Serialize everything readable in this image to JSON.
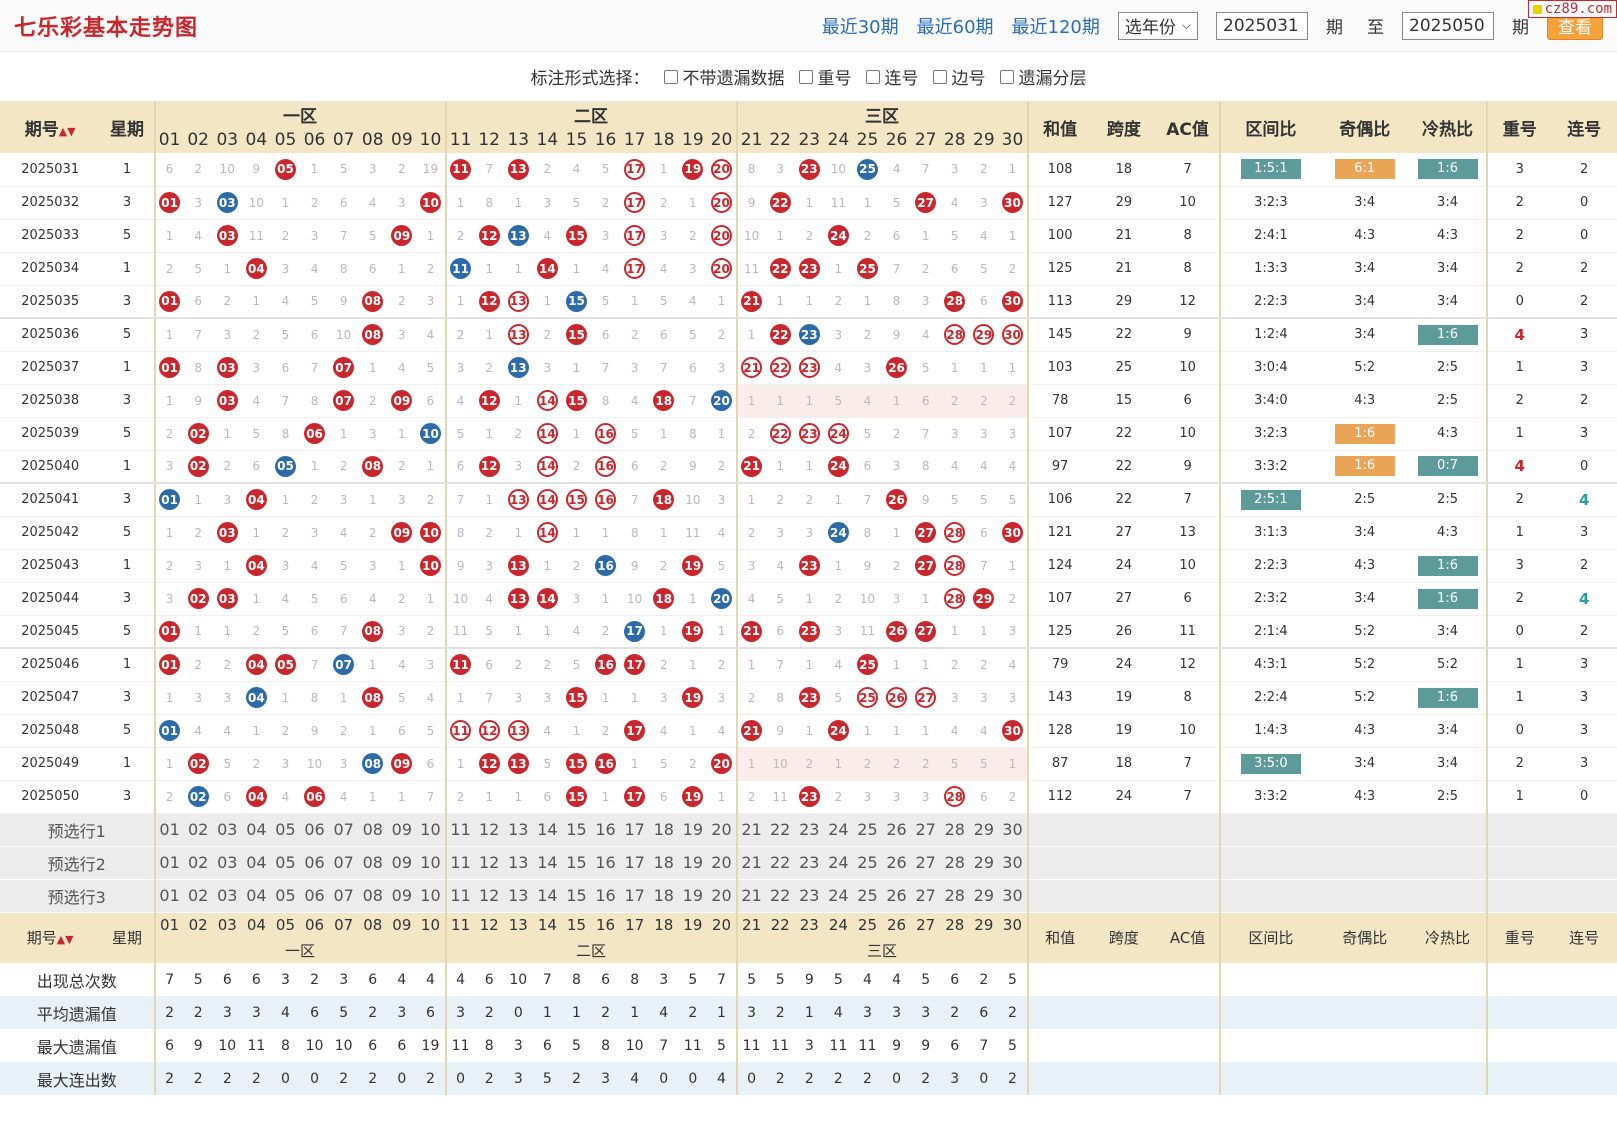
{
  "header": {
    "title": "七乐彩基本走势图",
    "links": [
      "最近30期",
      "最近60期",
      "最近120期"
    ],
    "year_select": "选年份",
    "from_issue": "2025031",
    "issue_unit": "期",
    "to_label": "至",
    "to_issue": "2025050",
    "query_button": "查看",
    "brand": "cz89.com"
  },
  "options": {
    "label": "标注形式选择：",
    "items": [
      "不带遗漏数据",
      "重号",
      "连号",
      "边号",
      "遗漏分层"
    ]
  },
  "table": {
    "col_period": "期号",
    "col_weekday": "星期",
    "zones": [
      "一区",
      "二区",
      "三区"
    ],
    "numbers": [
      "01",
      "02",
      "03",
      "04",
      "05",
      "06",
      "07",
      "08",
      "09",
      "10",
      "11",
      "12",
      "13",
      "14",
      "15",
      "16",
      "17",
      "18",
      "19",
      "20",
      "21",
      "22",
      "23",
      "24",
      "25",
      "26",
      "27",
      "28",
      "29",
      "30"
    ],
    "stat_cols": [
      "和值",
      "跨度",
      "AC值",
      "区间比",
      "奇偶比",
      "冷热比",
      "重号",
      "连号"
    ]
  },
  "colors": {
    "red": "#c8272d",
    "blue": "#2d6aa8",
    "teal": "#5d9b9b",
    "orange": "#e9a456"
  },
  "rows": [
    {
      "p": "2025031",
      "w": "1",
      "c": [
        6,
        2,
        10,
        9,
        "R05",
        1,
        5,
        3,
        2,
        19,
        "R11",
        7,
        "R13",
        2,
        4,
        5,
        "O17",
        1,
        "R19",
        "O20",
        8,
        3,
        "R23",
        10,
        "B25",
        4,
        7,
        3,
        2,
        1
      ],
      "s": [
        "108",
        "18",
        "7",
        "1:5:1",
        "6:1",
        "1:6",
        "3",
        "2"
      ],
      "t": {
        "3": "teal",
        "4": "orange",
        "5": "teal"
      }
    },
    {
      "p": "2025032",
      "w": "3",
      "c": [
        "R01",
        3,
        "B03",
        10,
        1,
        2,
        6,
        4,
        3,
        "R10",
        1,
        8,
        1,
        3,
        5,
        2,
        "O17",
        2,
        1,
        "O20",
        9,
        "R22",
        1,
        11,
        1,
        5,
        "R27",
        4,
        3,
        "R30"
      ],
      "s": [
        "127",
        "29",
        "10",
        "3:2:3",
        "3:4",
        "3:4",
        "2",
        "0"
      ]
    },
    {
      "p": "2025033",
      "w": "5",
      "c": [
        1,
        4,
        "R03",
        11,
        2,
        3,
        7,
        5,
        "R09",
        1,
        2,
        "R12",
        "B13",
        4,
        "R15",
        3,
        "O17",
        3,
        2,
        "O20",
        10,
        1,
        2,
        "R24",
        2,
        6,
        1,
        5,
        4,
        1
      ],
      "s": [
        "100",
        "21",
        "8",
        "2:4:1",
        "4:3",
        "4:3",
        "2",
        "0"
      ]
    },
    {
      "p": "2025034",
      "w": "1",
      "c": [
        2,
        5,
        1,
        "R04",
        3,
        4,
        8,
        6,
        1,
        2,
        "B11",
        1,
        1,
        "R14",
        1,
        4,
        "O17",
        4,
        3,
        "O20",
        11,
        "R22",
        "R23",
        1,
        "R25",
        7,
        2,
        6,
        5,
        2
      ],
      "s": [
        "125",
        "21",
        "8",
        "1:3:3",
        "3:4",
        "3:4",
        "2",
        "2"
      ]
    },
    {
      "p": "2025035",
      "w": "3",
      "c": [
        "R01",
        6,
        2,
        1,
        4,
        5,
        9,
        "R08",
        2,
        3,
        1,
        "R12",
        "O13",
        1,
        "B15",
        5,
        1,
        5,
        4,
        1,
        "R21",
        1,
        1,
        2,
        1,
        8,
        3,
        "R28",
        6,
        "R30"
      ],
      "s": [
        "113",
        "29",
        "12",
        "2:2:3",
        "3:4",
        "3:4",
        "0",
        "2"
      ],
      "g": 1
    },
    {
      "p": "2025036",
      "w": "5",
      "c": [
        1,
        7,
        3,
        2,
        5,
        6,
        10,
        "R08",
        3,
        4,
        2,
        1,
        "O13",
        2,
        "R15",
        6,
        2,
        6,
        5,
        2,
        1,
        "R22",
        "B23",
        3,
        2,
        9,
        4,
        "O28",
        "O29",
        "O30"
      ],
      "s": [
        "145",
        "22",
        "9",
        "1:2:4",
        "3:4",
        "1:6",
        "4",
        "3"
      ],
      "t": {
        "5": "teal"
      },
      "h": {
        "6": "red"
      }
    },
    {
      "p": "2025037",
      "w": "1",
      "c": [
        "R01",
        8,
        "R03",
        3,
        6,
        7,
        "R07",
        1,
        4,
        5,
        3,
        2,
        "B13",
        3,
        1,
        7,
        3,
        7,
        6,
        3,
        "O21",
        "O22",
        "O23",
        4,
        3,
        "R26",
        5,
        1,
        1,
        1
      ],
      "s": [
        "103",
        "25",
        "10",
        "3:0:4",
        "5:2",
        "2:5",
        "1",
        "3"
      ]
    },
    {
      "p": "2025038",
      "w": "3",
      "c": [
        1,
        9,
        "R03",
        4,
        7,
        8,
        "R07",
        2,
        "R09",
        6,
        4,
        "R12",
        1,
        "O14",
        "R15",
        8,
        4,
        "R18",
        7,
        "B20",
        1,
        1,
        1,
        5,
        4,
        1,
        6,
        2,
        2,
        2
      ],
      "s": [
        "78",
        "15",
        "6",
        "3:4:0",
        "4:3",
        "2:5",
        "2",
        "2"
      ],
      "pink": 1
    },
    {
      "p": "2025039",
      "w": "5",
      "c": [
        2,
        "R02",
        1,
        5,
        8,
        "R06",
        1,
        3,
        1,
        "B10",
        5,
        1,
        2,
        "O14",
        1,
        "O16",
        5,
        1,
        8,
        1,
        2,
        "O22",
        "O23",
        "O24",
        5,
        2,
        7,
        3,
        3,
        3
      ],
      "s": [
        "107",
        "22",
        "10",
        "3:2:3",
        "1:6",
        "4:3",
        "1",
        "3"
      ],
      "t": {
        "4": "orange"
      }
    },
    {
      "p": "2025040",
      "w": "1",
      "c": [
        3,
        "R02",
        2,
        6,
        "B05",
        1,
        2,
        "R08",
        2,
        1,
        6,
        "R12",
        3,
        "O14",
        2,
        "O16",
        6,
        2,
        9,
        2,
        "R21",
        1,
        1,
        "R24",
        6,
        3,
        8,
        4,
        4,
        4
      ],
      "s": [
        "97",
        "22",
        "9",
        "3:3:2",
        "1:6",
        "0:7",
        "4",
        "0"
      ],
      "t": {
        "4": "orange",
        "5": "teal"
      },
      "h": {
        "6": "red"
      },
      "g": 1
    },
    {
      "p": "2025041",
      "w": "3",
      "c": [
        "B01",
        1,
        3,
        "R04",
        1,
        2,
        3,
        1,
        3,
        2,
        7,
        1,
        "O13",
        "O14",
        "O15",
        "O16",
        7,
        "R18",
        10,
        3,
        1,
        2,
        2,
        1,
        7,
        "R26",
        9,
        5,
        5,
        5
      ],
      "s": [
        "106",
        "22",
        "7",
        "2:5:1",
        "2:5",
        "2:5",
        "2",
        "4"
      ],
      "t": {
        "3": "teal"
      },
      "h": {
        "7": "teal"
      }
    },
    {
      "p": "2025042",
      "w": "5",
      "c": [
        1,
        2,
        "R03",
        1,
        2,
        3,
        4,
        2,
        "R09",
        "R10",
        8,
        2,
        1,
        "O14",
        1,
        1,
        8,
        1,
        11,
        4,
        2,
        3,
        3,
        "B24",
        8,
        1,
        "R27",
        "O28",
        6,
        "R30"
      ],
      "s": [
        "121",
        "27",
        "13",
        "3:1:3",
        "3:4",
        "4:3",
        "1",
        "3"
      ]
    },
    {
      "p": "2025043",
      "w": "1",
      "c": [
        2,
        3,
        1,
        "R04",
        3,
        4,
        5,
        3,
        1,
        "R10",
        9,
        3,
        "R13",
        1,
        2,
        "B16",
        9,
        2,
        "R19",
        5,
        3,
        4,
        "R23",
        1,
        9,
        2,
        "R27",
        "O28",
        7,
        1
      ],
      "s": [
        "124",
        "24",
        "10",
        "2:2:3",
        "4:3",
        "1:6",
        "3",
        "2"
      ],
      "t": {
        "5": "teal"
      }
    },
    {
      "p": "2025044",
      "w": "3",
      "c": [
        3,
        "R02",
        "R03",
        1,
        4,
        5,
        6,
        4,
        2,
        1,
        10,
        4,
        "R13",
        "R14",
        3,
        1,
        10,
        "R18",
        1,
        "B20",
        4,
        5,
        1,
        2,
        10,
        3,
        1,
        "O28",
        "R29",
        2
      ],
      "s": [
        "107",
        "27",
        "6",
        "2:3:2",
        "3:4",
        "1:6",
        "2",
        "4"
      ],
      "t": {
        "5": "teal"
      },
      "h": {
        "7": "teal"
      }
    },
    {
      "p": "2025045",
      "w": "5",
      "c": [
        "R01",
        1,
        1,
        2,
        5,
        6,
        7,
        "R08",
        3,
        2,
        11,
        5,
        1,
        1,
        4,
        2,
        "B17",
        1,
        "R19",
        1,
        "R21",
        6,
        "R23",
        3,
        11,
        "R26",
        "R27",
        1,
        1,
        3
      ],
      "s": [
        "125",
        "26",
        "11",
        "2:1:4",
        "5:2",
        "3:4",
        "0",
        "2"
      ],
      "g": 1
    },
    {
      "p": "2025046",
      "w": "1",
      "c": [
        "R01",
        2,
        2,
        "R04",
        "R05",
        7,
        "B07",
        1,
        4,
        3,
        "R11",
        6,
        2,
        2,
        5,
        "R16",
        "R17",
        2,
        1,
        2,
        1,
        7,
        1,
        4,
        "R25",
        1,
        1,
        2,
        2,
        4
      ],
      "s": [
        "79",
        "24",
        "12",
        "4:3:1",
        "5:2",
        "5:2",
        "1",
        "3"
      ]
    },
    {
      "p": "2025047",
      "w": "3",
      "c": [
        1,
        3,
        3,
        "B04",
        1,
        8,
        1,
        "R08",
        5,
        4,
        1,
        7,
        3,
        3,
        "R15",
        1,
        1,
        3,
        "R19",
        3,
        2,
        8,
        "R23",
        5,
        "O25",
        "O26",
        "O27",
        3,
        3,
        3
      ],
      "s": [
        "143",
        "19",
        "8",
        "2:2:4",
        "5:2",
        "1:6",
        "1",
        "3"
      ],
      "t": {
        "5": "teal"
      }
    },
    {
      "p": "2025048",
      "w": "5",
      "c": [
        "B01",
        4,
        4,
        1,
        2,
        9,
        2,
        1,
        6,
        5,
        "O11",
        "O12",
        "O13",
        4,
        1,
        2,
        "R17",
        4,
        1,
        4,
        "R21",
        9,
        1,
        "R24",
        1,
        1,
        1,
        4,
        4,
        "R30"
      ],
      "s": [
        "128",
        "19",
        "10",
        "1:4:3",
        "4:3",
        "3:4",
        "0",
        "3"
      ]
    },
    {
      "p": "2025049",
      "w": "1",
      "c": [
        1,
        "R02",
        5,
        2,
        3,
        10,
        3,
        "B08",
        "R09",
        6,
        1,
        "R12",
        "R13",
        5,
        "R15",
        "R16",
        1,
        5,
        2,
        "R20",
        1,
        10,
        2,
        1,
        2,
        2,
        2,
        5,
        5,
        1
      ],
      "s": [
        "87",
        "18",
        "7",
        "3:5:0",
        "3:4",
        "3:4",
        "2",
        "3"
      ],
      "t": {
        "3": "teal"
      },
      "pink": 1
    },
    {
      "p": "2025050",
      "w": "3",
      "c": [
        2,
        "B02",
        6,
        "R04",
        4,
        "R06",
        4,
        1,
        1,
        7,
        2,
        1,
        1,
        6,
        "R15",
        1,
        "R17",
        6,
        "R19",
        1,
        2,
        11,
        "R23",
        2,
        3,
        3,
        3,
        "O28",
        6,
        2
      ],
      "s": [
        "112",
        "24",
        "7",
        "3:3:2",
        "4:3",
        "2:5",
        "1",
        "0"
      ]
    }
  ],
  "preselect": {
    "labels": [
      "预选行1",
      "预选行2",
      "预选行3"
    ]
  },
  "footer": {
    "col_period": "期号",
    "col_weekday": "星期",
    "zones": [
      "一区",
      "二区",
      "三区"
    ]
  },
  "summary": [
    {
      "label": "出现总次数",
      "v": [
        "7",
        "5",
        "6",
        "6",
        "3",
        "2",
        "3",
        "6",
        "4",
        "4",
        "4",
        "6",
        "10",
        "7",
        "8",
        "6",
        "8",
        "3",
        "5",
        "7",
        "5",
        "5",
        "9",
        "5",
        "4",
        "4",
        "5",
        "6",
        "2",
        "5"
      ]
    },
    {
      "label": "平均遗漏值",
      "v": [
        "2",
        "2",
        "3",
        "3",
        "4",
        "6",
        "5",
        "2",
        "3",
        "6",
        "3",
        "2",
        "0",
        "1",
        "1",
        "2",
        "1",
        "4",
        "2",
        "1",
        "3",
        "2",
        "1",
        "4",
        "3",
        "3",
        "3",
        "2",
        "6",
        "2"
      ]
    },
    {
      "label": "最大遗漏值",
      "v": [
        "6",
        "9",
        "10",
        "11",
        "8",
        "10",
        "10",
        "6",
        "6",
        "19",
        "11",
        "8",
        "3",
        "6",
        "5",
        "8",
        "10",
        "7",
        "11",
        "5",
        "11",
        "11",
        "3",
        "11",
        "11",
        "9",
        "9",
        "6",
        "7",
        "5"
      ]
    },
    {
      "label": "最大连出数",
      "v": [
        "2",
        "2",
        "2",
        "2",
        "0",
        "0",
        "2",
        "2",
        "0",
        "2",
        "0",
        "2",
        "3",
        "5",
        "2",
        "3",
        "4",
        "0",
        "0",
        "4",
        "0",
        "2",
        "2",
        "2",
        "2",
        "0",
        "2",
        "3",
        "0",
        "2"
      ]
    }
  ]
}
